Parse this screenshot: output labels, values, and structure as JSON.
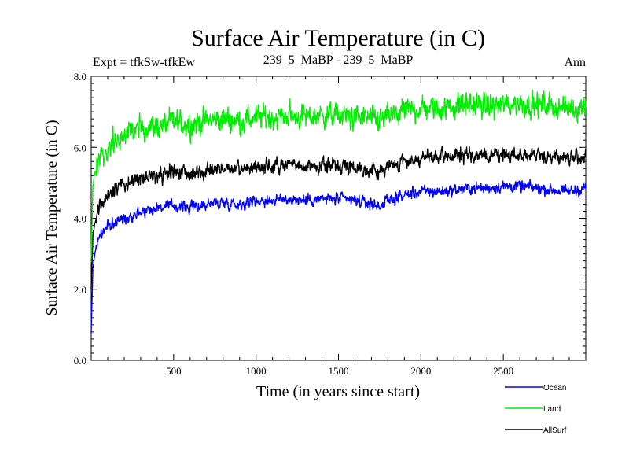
{
  "chart_data": {
    "type": "line",
    "title": "Surface Air Temperature (in C)",
    "subtitle_left": "Expt = tfkSw-tfkEw",
    "subtitle_center": "239_5_MaBP - 239_5_MaBP",
    "subtitle_right": "Ann",
    "xlabel": "Time (in years since start)",
    "ylabel": "Surface Air Temperature (in C)",
    "xlim": [
      0,
      3000
    ],
    "ylim": [
      0.0,
      8.0
    ],
    "xticks": [
      500,
      1000,
      1500,
      2000,
      2500
    ],
    "xtick_labels": [
      "500",
      "1000",
      "1500",
      "2000",
      "2500"
    ],
    "yticks": [
      0.0,
      2.0,
      4.0,
      6.0,
      8.0
    ],
    "ytick_labels": [
      "0.0",
      "2.0",
      "4.0",
      "6.0",
      "8.0"
    ],
    "legend_position": "bottom-right, below plot",
    "series": [
      {
        "name": "Ocean",
        "color": "#0000ff",
        "noise": 0.12,
        "x": [
          0,
          10,
          25,
          50,
          100,
          150,
          200,
          300,
          400,
          500,
          600,
          700,
          800,
          900,
          1000,
          1100,
          1200,
          1300,
          1400,
          1500,
          1600,
          1700,
          1750,
          1800,
          1900,
          2000,
          2100,
          2200,
          2300,
          2400,
          2500,
          2600,
          2700,
          2800,
          2900,
          3000
        ],
        "values": [
          0.8,
          2.6,
          3.1,
          3.5,
          3.75,
          3.9,
          4.0,
          4.2,
          4.3,
          4.35,
          4.3,
          4.4,
          4.45,
          4.4,
          4.5,
          4.5,
          4.55,
          4.5,
          4.55,
          4.55,
          4.5,
          4.4,
          4.35,
          4.5,
          4.65,
          4.75,
          4.75,
          4.8,
          4.85,
          4.85,
          4.9,
          4.9,
          4.85,
          4.8,
          4.75,
          4.85
        ]
      },
      {
        "name": "Land",
        "color": "#00ee00",
        "noise": 0.25,
        "x": [
          0,
          10,
          25,
          50,
          100,
          150,
          200,
          300,
          400,
          500,
          600,
          700,
          800,
          900,
          1000,
          1100,
          1200,
          1300,
          1400,
          1500,
          1600,
          1700,
          1750,
          1800,
          1900,
          2000,
          2100,
          2200,
          2300,
          2400,
          2500,
          2600,
          2700,
          2800,
          2900,
          3000
        ],
        "values": [
          2.8,
          4.9,
          5.3,
          5.7,
          6.0,
          6.2,
          6.35,
          6.55,
          6.6,
          6.7,
          6.65,
          6.75,
          6.8,
          6.75,
          6.85,
          6.85,
          6.9,
          6.85,
          6.9,
          6.9,
          6.85,
          6.8,
          6.75,
          6.85,
          7.0,
          7.1,
          7.1,
          7.15,
          7.2,
          7.15,
          7.2,
          7.25,
          7.2,
          7.15,
          7.1,
          7.15
        ]
      },
      {
        "name": "AllSurf",
        "color": "#000000",
        "noise": 0.15,
        "x": [
          0,
          10,
          25,
          50,
          100,
          150,
          200,
          300,
          400,
          500,
          600,
          700,
          800,
          900,
          1000,
          1100,
          1200,
          1300,
          1400,
          1500,
          1600,
          1700,
          1750,
          1800,
          1900,
          2000,
          2100,
          2200,
          2300,
          2400,
          2500,
          2600,
          2700,
          2800,
          2900,
          3000
        ],
        "values": [
          2.0,
          3.5,
          3.9,
          4.3,
          4.65,
          4.85,
          4.95,
          5.15,
          5.2,
          5.3,
          5.25,
          5.35,
          5.4,
          5.35,
          5.45,
          5.45,
          5.5,
          5.45,
          5.5,
          5.5,
          5.45,
          5.35,
          5.3,
          5.45,
          5.6,
          5.7,
          5.7,
          5.75,
          5.8,
          5.75,
          5.8,
          5.8,
          5.75,
          5.75,
          5.7,
          5.75
        ]
      }
    ]
  }
}
